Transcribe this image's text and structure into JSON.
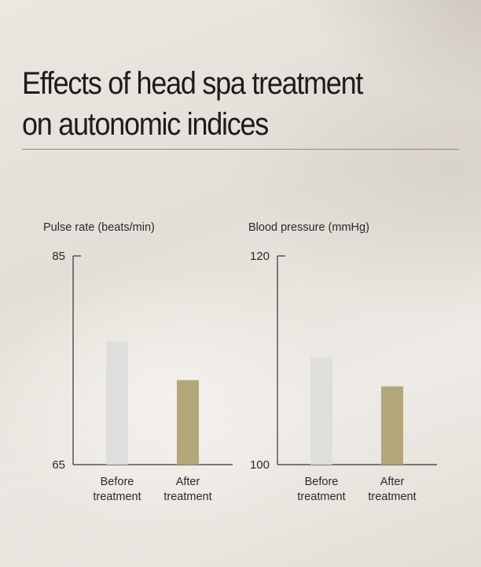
{
  "title_lines": [
    "Effects of head spa treatment",
    "on autonomic indices"
  ],
  "colors": {
    "before_bar": "#dedfdd",
    "after_bar": "#b3a67a",
    "axis": "#333333",
    "text": "#2a2a2a"
  },
  "chart_data": [
    {
      "type": "bar",
      "title": "Pulse rate (beats/min)",
      "categories": [
        "Before\ntreatment",
        "After\ntreatment"
      ],
      "values": [
        76.8,
        73.1
      ],
      "ylim": [
        65,
        85
      ],
      "yticks": [
        65,
        85
      ],
      "grid": false
    },
    {
      "type": "bar",
      "title": "Blood pressure (mmHg)",
      "categories": [
        "Before\ntreatment",
        "After\ntreatment"
      ],
      "values": [
        110.3,
        107.5
      ],
      "ylim": [
        100,
        120
      ],
      "yticks": [
        100,
        120
      ],
      "grid": false
    }
  ]
}
